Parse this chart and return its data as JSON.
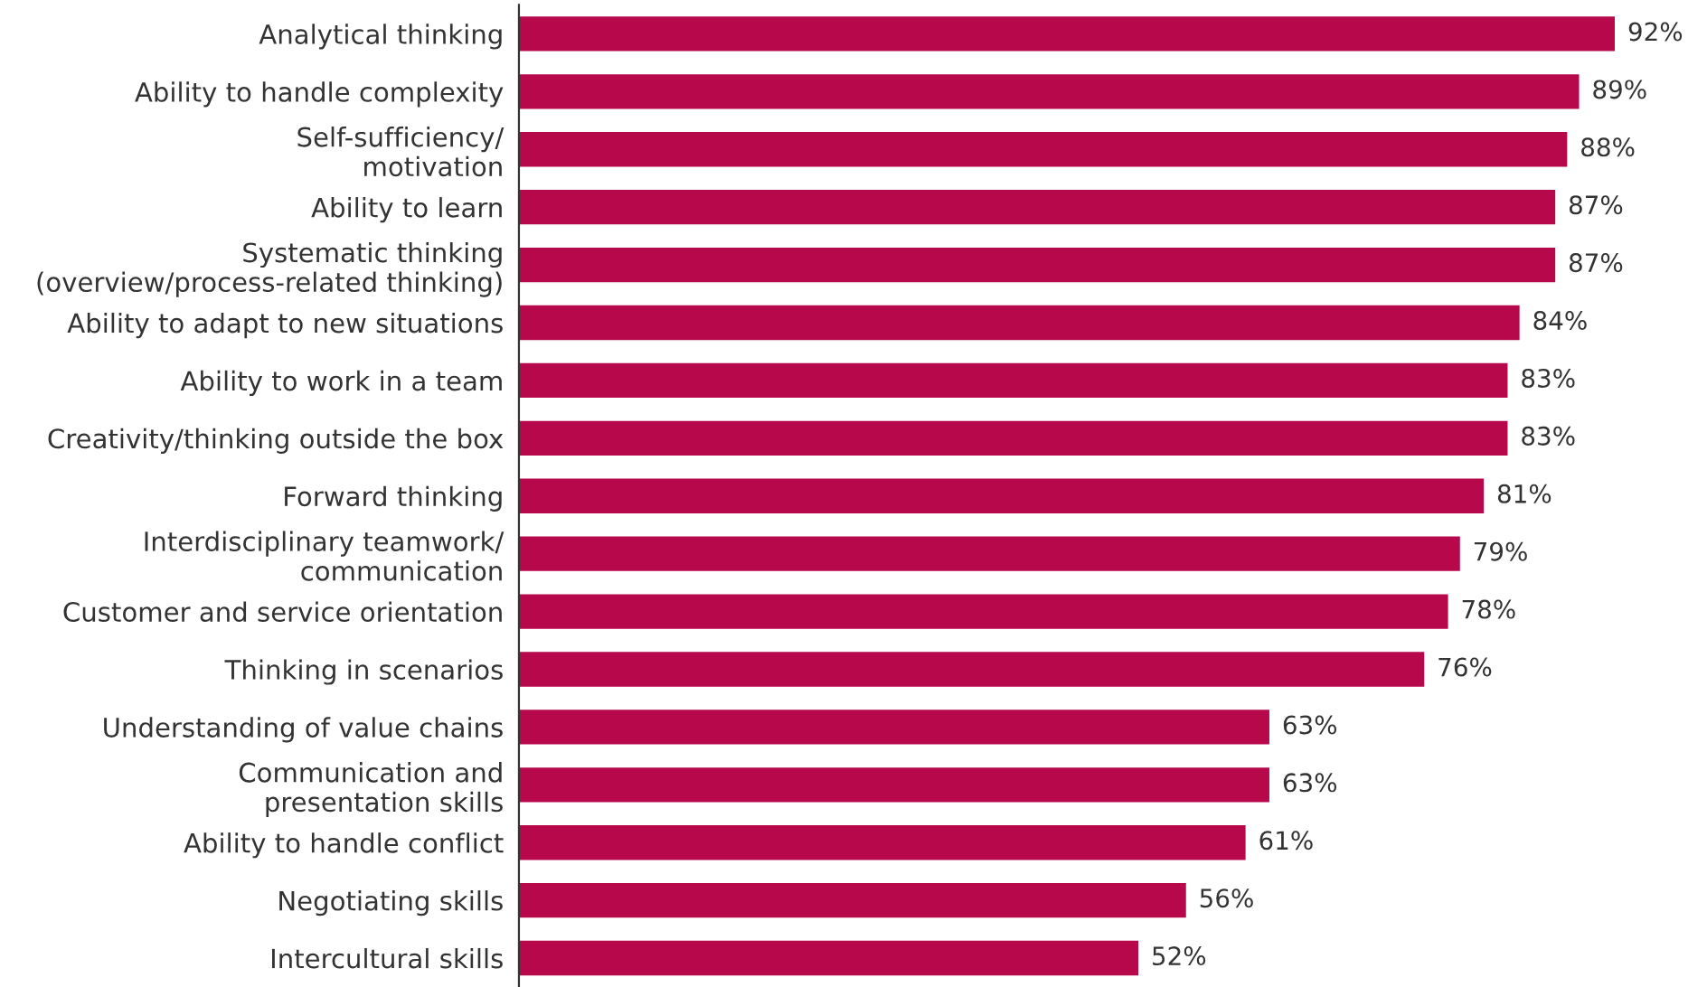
{
  "chart_data": {
    "type": "bar",
    "orientation": "horizontal",
    "categories": [
      "Analytical thinking",
      "Ability to handle complexity",
      "Self-sufficiency/\nmotivation",
      "Ability to learn",
      "Systematic thinking\n(overview/process-related thinking)",
      "Ability to adapt to new situations",
      "Ability to work in a team",
      "Creativity/thinking outside the box",
      "Forward thinking",
      "Interdisciplinary teamwork/\ncommunication",
      "Customer and service orientation",
      "Thinking in scenarios",
      "Understanding of value chains",
      "Communication and\npresentation skills",
      "Ability to handle conflict",
      "Negotiating skills",
      "Intercultural skills"
    ],
    "values": [
      92,
      89,
      88,
      87,
      87,
      84,
      83,
      83,
      81,
      79,
      78,
      76,
      63,
      63,
      61,
      56,
      52
    ],
    "value_labels": [
      "92%",
      "89%",
      "88%",
      "87%",
      "87%",
      "84%",
      "83%",
      "83%",
      "81%",
      "79%",
      "78%",
      "76%",
      "63%",
      "63%",
      "61%",
      "56%",
      "52%"
    ],
    "color": "#b8084c",
    "tick_labels": "y",
    "grid": false,
    "legend": false
  }
}
